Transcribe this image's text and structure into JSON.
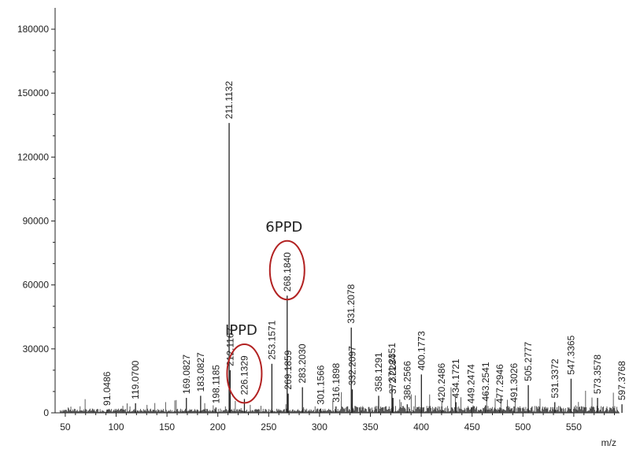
{
  "chart_data": {
    "type": "mass-spectrum",
    "x_unit": "m/z",
    "xlim": [
      40,
      595
    ],
    "ylim": [
      0,
      190000
    ],
    "x_ticks": [
      50,
      100,
      150,
      200,
      250,
      300,
      350,
      400,
      450,
      500,
      550
    ],
    "y_ticks": [
      0,
      30000,
      60000,
      90000,
      120000,
      150000,
      180000
    ],
    "peaks": [
      {
        "mz": 91.0486,
        "label": "91.0486",
        "intensity": 1500
      },
      {
        "mz": 119.07,
        "label": "119.0700",
        "intensity": 4500
      },
      {
        "mz": 169.0827,
        "label": "169.0827",
        "intensity": 7000
      },
      {
        "mz": 183.0827,
        "label": "183.0827",
        "intensity": 8000
      },
      {
        "mz": 198.1185,
        "label": "198.1185",
        "intensity": 2500
      },
      {
        "mz": 211.1132,
        "label": "211.1132",
        "intensity": 136000
      },
      {
        "mz": 212.1167,
        "label": "212.1167",
        "intensity": 20000
      },
      {
        "mz": 226.1329,
        "label": "226.1329",
        "intensity": 6500
      },
      {
        "mz": 253.1571,
        "label": "253.1571",
        "intensity": 23000
      },
      {
        "mz": 268.184,
        "label": "268.1840",
        "intensity": 55000
      },
      {
        "mz": 269.1859,
        "label": "269.1859",
        "intensity": 9000
      },
      {
        "mz": 283.203,
        "label": "283.2030",
        "intensity": 12000
      },
      {
        "mz": 301.1566,
        "label": "301.1566",
        "intensity": 2000
      },
      {
        "mz": 316.1898,
        "label": "316.1898",
        "intensity": 3000
      },
      {
        "mz": 331.2078,
        "label": "331.2078",
        "intensity": 40000
      },
      {
        "mz": 332.2097,
        "label": "332.2097",
        "intensity": 11000
      },
      {
        "mz": 358.1291,
        "label": "358.1291",
        "intensity": 8000
      },
      {
        "mz": 371.2351,
        "label": "371.2351",
        "intensity": 12500
      },
      {
        "mz": 372.2284,
        "label": "372.2284",
        "intensity": 7000
      },
      {
        "mz": 386.2566,
        "label": "386.2566",
        "intensity": 4000
      },
      {
        "mz": 400.1773,
        "label": "400.1773",
        "intensity": 18000
      },
      {
        "mz": 420.2486,
        "label": "420.2486",
        "intensity": 3000
      },
      {
        "mz": 434.1721,
        "label": "434.1721",
        "intensity": 5000
      },
      {
        "mz": 449.2474,
        "label": "449.2474",
        "intensity": 2500
      },
      {
        "mz": 463.2541,
        "label": "463.2541",
        "intensity": 3500
      },
      {
        "mz": 477.2946,
        "label": "477.2946",
        "intensity": 2500
      },
      {
        "mz": 491.3026,
        "label": "491.3026",
        "intensity": 3000
      },
      {
        "mz": 505.2777,
        "label": "505.2777",
        "intensity": 13000
      },
      {
        "mz": 531.3372,
        "label": "531.3372",
        "intensity": 5000
      },
      {
        "mz": 547.3365,
        "label": "547.3365",
        "intensity": 16000
      },
      {
        "mz": 573.3578,
        "label": "573.3578",
        "intensity": 7000
      },
      {
        "mz": 597.3768,
        "label": "597.3768",
        "intensity": 4000
      }
    ],
    "annotations": [
      {
        "text": "6PPD",
        "target_mz": 268.184
      },
      {
        "text": "IPPD",
        "target_mz": 226.1329
      }
    ],
    "grid": false,
    "colors": {
      "line": "#222222",
      "highlight": "#b22222"
    }
  }
}
